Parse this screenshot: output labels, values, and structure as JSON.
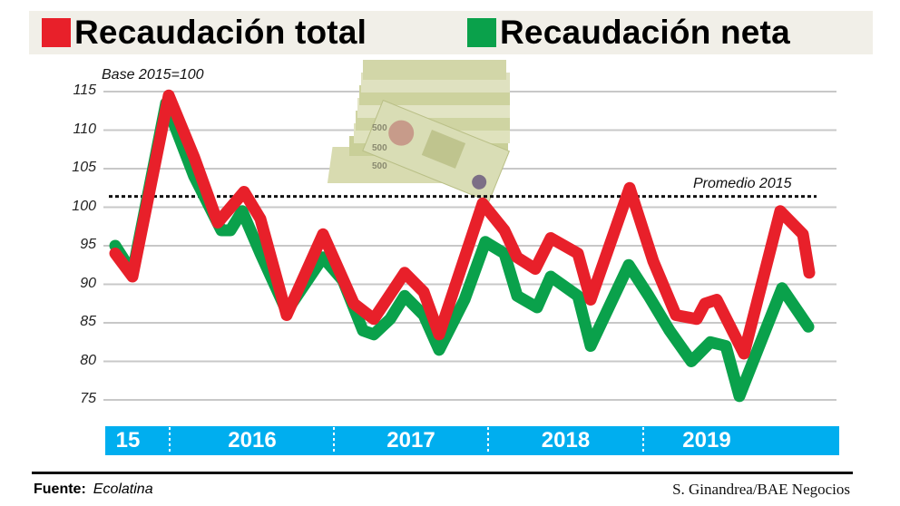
{
  "legend": {
    "total": {
      "label": "Recaudación total",
      "color": "#e8202a"
    },
    "neta": {
      "label": "Recaudación neta",
      "color": "#0aa14b"
    }
  },
  "annotations": {
    "base": "Base 2015=100",
    "promedio": "Promedio 2015",
    "promedio_value": 101.4
  },
  "image": {
    "description": "stack of 500 peso banknotes"
  },
  "year_band": {
    "color": "#00aeef",
    "labels": [
      "15",
      "2016",
      "2017",
      "2018",
      "2019"
    ]
  },
  "footer": {
    "source_label": "Fuente:",
    "source_value": "Ecolatina",
    "credit": "S. Ginandrea/BAE Negocios"
  },
  "chart_data": {
    "type": "line",
    "title": "Recaudación total / Recaudación neta",
    "subtitle": "Base 2015=100",
    "xlabel": "",
    "ylabel": "",
    "ylim": [
      75,
      115
    ],
    "yticks": [
      115,
      110,
      105,
      100,
      95,
      90,
      85,
      80,
      75
    ],
    "grid": true,
    "legend_position": "top",
    "reference_line": {
      "label": "Promedio 2015",
      "value": 101.4,
      "style": "dotted"
    },
    "x_groups": [
      "15",
      "2016",
      "2017",
      "2018",
      "2019"
    ],
    "series": [
      {
        "name": "Recaudación total",
        "color": "#e8202a",
        "points": [
          [
            127,
            94
          ],
          [
            146,
            91
          ],
          [
            186,
            114.5
          ],
          [
            214,
            106.5
          ],
          [
            240,
            98
          ],
          [
            269,
            102
          ],
          [
            287,
            98.5
          ],
          [
            316,
            86
          ],
          [
            356,
            96.5
          ],
          [
            390,
            87.5
          ],
          [
            412,
            85.5
          ],
          [
            446,
            91.5
          ],
          [
            467,
            89
          ],
          [
            484,
            83.5
          ],
          [
            532,
            100.5
          ],
          [
            556,
            97
          ],
          [
            570,
            93.5
          ],
          [
            590,
            92
          ],
          [
            607,
            96
          ],
          [
            637,
            94
          ],
          [
            651,
            88
          ],
          [
            694,
            102.5
          ],
          [
            720,
            93
          ],
          [
            745,
            86
          ],
          [
            768,
            85.5
          ],
          [
            777,
            87.5
          ],
          [
            790,
            88
          ],
          [
            820,
            81
          ],
          [
            860,
            99.5
          ],
          [
            885,
            96.5
          ],
          [
            892,
            91.5
          ]
        ]
      },
      {
        "name": "Recaudación neta",
        "color": "#0aa14b",
        "points": [
          [
            127,
            95
          ],
          [
            146,
            91.5
          ],
          [
            183,
            113.5
          ],
          [
            214,
            104
          ],
          [
            244,
            97
          ],
          [
            254,
            97
          ],
          [
            267,
            99.5
          ],
          [
            287,
            94
          ],
          [
            316,
            86.5
          ],
          [
            356,
            93.5
          ],
          [
            378,
            90.5
          ],
          [
            400,
            84
          ],
          [
            412,
            83.5
          ],
          [
            430,
            85.5
          ],
          [
            446,
            88.5
          ],
          [
            467,
            86
          ],
          [
            484,
            81.5
          ],
          [
            512,
            88
          ],
          [
            535,
            95.5
          ],
          [
            556,
            94
          ],
          [
            570,
            88.5
          ],
          [
            592,
            87
          ],
          [
            607,
            91
          ],
          [
            637,
            88.5
          ],
          [
            651,
            82
          ],
          [
            693,
            92.5
          ],
          [
            715,
            88.5
          ],
          [
            738,
            84
          ],
          [
            762,
            80
          ],
          [
            783,
            82.5
          ],
          [
            800,
            82
          ],
          [
            815,
            75.5
          ],
          [
            862,
            89.5
          ],
          [
            891,
            84.5
          ]
        ]
      }
    ],
    "series_point_format": "[x_pixel_position, value]"
  }
}
